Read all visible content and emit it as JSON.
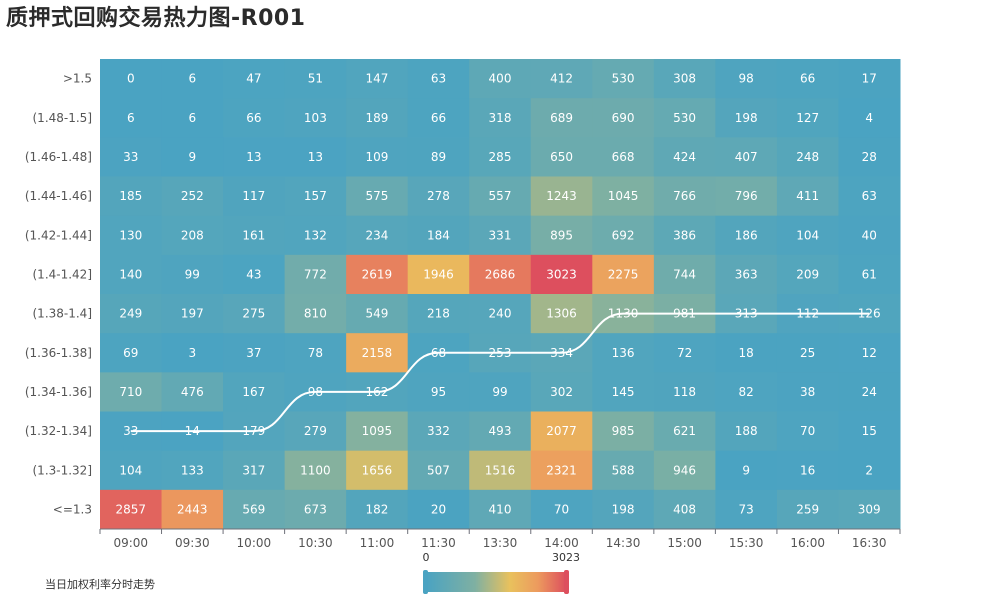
{
  "title": "质押式回购交易热力图-R001",
  "legend_label": "当日加权利率分时走势",
  "chart_data": {
    "type": "heatmap",
    "x_categories": [
      "09:00",
      "09:30",
      "10:00",
      "10:30",
      "11:00",
      "11:30",
      "13:30",
      "14:00",
      "14:30",
      "15:00",
      "15:30",
      "16:00",
      "16:30"
    ],
    "y_categories": [
      ">1.5",
      "(1.48-1.5]",
      "(1.46-1.48]",
      "(1.44-1.46]",
      "(1.42-1.44]",
      "(1.4-1.42]",
      "(1.38-1.4]",
      "(1.36-1.38]",
      "(1.34-1.36]",
      "(1.32-1.34]",
      "(1.3-1.32]",
      "<=1.3"
    ],
    "values": [
      [
        0,
        6,
        47,
        51,
        147,
        63,
        400,
        412,
        530,
        308,
        98,
        66,
        17
      ],
      [
        6,
        6,
        66,
        103,
        189,
        66,
        318,
        689,
        690,
        530,
        198,
        127,
        4
      ],
      [
        33,
        9,
        13,
        13,
        109,
        89,
        285,
        650,
        668,
        424,
        407,
        248,
        28
      ],
      [
        185,
        252,
        117,
        157,
        575,
        278,
        557,
        1243,
        1045,
        766,
        796,
        411,
        63
      ],
      [
        130,
        208,
        161,
        132,
        234,
        184,
        331,
        895,
        692,
        386,
        186,
        104,
        40
      ],
      [
        140,
        99,
        43,
        772,
        2619,
        1946,
        2686,
        3023,
        2275,
        744,
        363,
        209,
        61
      ],
      [
        249,
        197,
        275,
        810,
        549,
        218,
        240,
        1306,
        1130,
        981,
        313,
        112,
        126
      ],
      [
        69,
        3,
        37,
        78,
        2158,
        68,
        253,
        334,
        136,
        72,
        18,
        25,
        12
      ],
      [
        710,
        476,
        167,
        98,
        162,
        95,
        99,
        302,
        145,
        118,
        82,
        38,
        24
      ],
      [
        33,
        14,
        179,
        279,
        1095,
        332,
        493,
        2077,
        985,
        621,
        188,
        70,
        15
      ],
      [
        104,
        133,
        317,
        1100,
        1656,
        507,
        1516,
        2321,
        588,
        946,
        9,
        16,
        2
      ],
      [
        2857,
        2443,
        569,
        673,
        182,
        20,
        410,
        70,
        198,
        408,
        73,
        259,
        309
      ]
    ],
    "visual_map": {
      "min": 0,
      "max": 3023,
      "min_label": "0",
      "max_label": "3023",
      "colors": [
        "#4aa3c2",
        "#7fb0a2",
        "#e9c15d",
        "#ec9a5e",
        "#dd4f5e"
      ]
    },
    "trend_line": {
      "name": "当日加权利率分时走势",
      "y_index_per_x": [
        9,
        9,
        9,
        8,
        8,
        7,
        7,
        7,
        6,
        6,
        6,
        6,
        6
      ],
      "color": "#ffffff"
    }
  }
}
